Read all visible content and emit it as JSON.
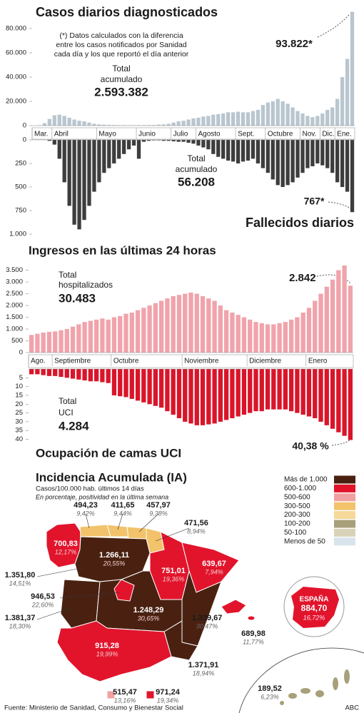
{
  "chart_data": [
    {
      "type": "bar",
      "title": "Casos diarios diagnosticados",
      "color": "#b9c6cf",
      "categories": [
        "Mar.",
        null,
        null,
        null,
        "Abril",
        null,
        null,
        null,
        null,
        null,
        null,
        null,
        null,
        "Mayo",
        null,
        null,
        null,
        null,
        null,
        null,
        null,
        "Junio",
        null,
        null,
        null,
        null,
        null,
        null,
        "Julio",
        null,
        null,
        null,
        null,
        "Agosto",
        null,
        null,
        null,
        null,
        null,
        null,
        null,
        "Sept.",
        null,
        null,
        null,
        null,
        null,
        "Octubre",
        null,
        null,
        null,
        null,
        null,
        null,
        "Nov.",
        null,
        null,
        null,
        "Dic.",
        null,
        null,
        "Ene.",
        null,
        null,
        null
      ],
      "values": [
        0,
        300,
        2000,
        5500,
        8500,
        9000,
        8000,
        6500,
        5000,
        4000,
        3500,
        2500,
        1500,
        1000,
        800,
        600,
        500,
        400,
        400,
        350,
        350,
        400,
        400,
        450,
        500,
        800,
        1000,
        1500,
        2500,
        3500,
        4000,
        5000,
        6000,
        6500,
        7500,
        8000,
        9000,
        9500,
        10000,
        11000,
        11000,
        11500,
        11000,
        11000,
        12000,
        13000,
        17000,
        19000,
        20000,
        22000,
        20000,
        18000,
        15000,
        12000,
        10000,
        8000,
        7000,
        8000,
        10000,
        13000,
        15000,
        22000,
        40000,
        55000,
        93822
      ],
      "ylim": [
        0,
        95000
      ],
      "yticks": [
        0,
        {
          "value": 20000,
          "label": "20.000"
        },
        {
          "value": 40000,
          "label": "40.000"
        },
        {
          "value": 60000,
          "label": "60.000"
        },
        {
          "value": 80000,
          "label": "80.000"
        }
      ],
      "annotations": [
        "(*) Datos calculados con la diferencia",
        "entre los casos notificados por Sanidad",
        "cada día y los que reportó el día anterior",
        "Total",
        "acumulado",
        "2.593.382",
        "93.822*"
      ]
    },
    {
      "type": "bar",
      "title": "Fallecidos diarios",
      "color": "#3d3d3d",
      "y_inverted": true,
      "values": [
        0,
        0,
        0,
        10,
        50,
        200,
        450,
        700,
        900,
        950,
        850,
        700,
        550,
        450,
        350,
        300,
        250,
        200,
        150,
        100,
        60,
        200,
        20,
        10,
        5,
        5,
        10,
        10,
        15,
        20,
        20,
        30,
        40,
        60,
        80,
        100,
        150,
        180,
        200,
        220,
        230,
        250,
        230,
        220,
        200,
        250,
        300,
        350,
        420,
        480,
        500,
        480,
        450,
        400,
        350,
        300,
        280,
        250,
        270,
        300,
        350,
        450,
        500,
        550,
        767
      ],
      "ylim": [
        0,
        1000
      ],
      "yticks": [
        0,
        250,
        500,
        750,
        {
          "value": 1000,
          "label": "1.000"
        }
      ],
      "annotations": [
        "Total",
        "acumulado",
        "56.208",
        "767*"
      ]
    },
    {
      "type": "bar",
      "title": "Ingresos en las últimas 24 horas",
      "color": "#f0a3ab",
      "categories": [
        "Ago.",
        null,
        null,
        null,
        "Septiembre",
        null,
        null,
        null,
        null,
        null,
        null,
        null,
        null,
        null,
        "Octubre",
        null,
        null,
        null,
        null,
        null,
        null,
        null,
        null,
        null,
        null,
        null,
        "Noviembre",
        null,
        null,
        null,
        null,
        null,
        null,
        null,
        null,
        null,
        null,
        "Diciembre",
        null,
        null,
        null,
        null,
        null,
        null,
        null,
        null,
        null,
        "Enero",
        null,
        null,
        null,
        null,
        null,
        null,
        null
      ],
      "values": [
        750,
        800,
        850,
        880,
        900,
        950,
        1000,
        1100,
        1200,
        1300,
        1350,
        1400,
        1450,
        1400,
        1500,
        1550,
        1650,
        1700,
        1800,
        1900,
        2000,
        2100,
        2200,
        2300,
        2400,
        2450,
        2500,
        2550,
        2500,
        2400,
        2300,
        2200,
        2000,
        1800,
        1700,
        1600,
        1500,
        1400,
        1300,
        1250,
        1200,
        1200,
        1250,
        1300,
        1400,
        1500,
        1700,
        1900,
        2200,
        2500,
        2800,
        3100,
        3500,
        3700,
        2842
      ],
      "ylim": [
        0,
        3700
      ],
      "yticks": [
        0,
        500,
        {
          "value": 1000,
          "label": "1.000"
        },
        {
          "value": 1500,
          "label": "1.500"
        },
        {
          "value": 2000,
          "label": "2.000"
        },
        {
          "value": 2500,
          "label": "2.500"
        },
        {
          "value": 3000,
          "label": "3.000"
        },
        {
          "value": 3500,
          "label": "3.500"
        }
      ],
      "annotations": [
        "Total",
        "hospitalizados",
        "30.483",
        "2.842"
      ]
    },
    {
      "type": "bar",
      "title": "Ocupación de camas UCI",
      "color": "#d9152a",
      "y_inverted": true,
      "values": [
        3,
        3,
        3.5,
        4,
        4,
        4.5,
        5,
        5.5,
        6,
        6.5,
        7,
        7,
        7.5,
        8,
        15,
        15.5,
        16,
        17,
        18,
        19,
        20,
        21,
        22,
        24,
        26,
        28,
        30,
        31,
        32,
        32,
        31.5,
        31,
        30,
        29,
        28,
        27,
        26,
        25,
        24,
        24,
        23,
        23,
        23,
        23,
        24,
        25,
        26,
        27,
        28,
        30,
        32,
        34,
        36,
        38,
        40.38
      ],
      "ylim": [
        0,
        41
      ],
      "yticks": [
        5,
        10,
        15,
        20,
        25,
        30,
        35,
        40
      ],
      "annotations": [
        "Total",
        "UCI",
        "4.284",
        "40,38 %"
      ]
    }
  ],
  "map": {
    "title": "Incidencia Acumulada (IA)",
    "subtitle": "Casos/100.000 hab. últimos 14 días",
    "note": "En porcentaje, positividad en la última semana",
    "legend": [
      {
        "label": "Más de 1.000",
        "color": "#4a2111"
      },
      {
        "label": "600-1.000",
        "color": "#e2142c"
      },
      {
        "label": "500-600",
        "color": "#f0a0a0"
      },
      {
        "label": "300-500",
        "color": "#f2c36b"
      },
      {
        "label": "200-300",
        "color": "#f5d89a"
      },
      {
        "label": "100-200",
        "color": "#a8a07a"
      },
      {
        "label": "50-100",
        "color": "#d8d3b8"
      },
      {
        "label": "Menos de 50",
        "color": "#d8e4ec"
      }
    ],
    "regions": [
      {
        "value": "700,83",
        "positivity": "12,17%"
      },
      {
        "value": "494,23",
        "positivity": "9,42%"
      },
      {
        "value": "411,65",
        "positivity": "9,44%"
      },
      {
        "value": "457,97",
        "positivity": "9,38%"
      },
      {
        "value": "471,56",
        "positivity": "8,94%"
      },
      {
        "value": "1.266,11",
        "positivity": "20,55%"
      },
      {
        "value": "751,01",
        "positivity": "19,36%"
      },
      {
        "value": "639,67",
        "positivity": "7,94%"
      },
      {
        "value": "1.351,80",
        "positivity": "14,51%"
      },
      {
        "value": "946,53",
        "positivity": "22,60%"
      },
      {
        "value": "1.248,29",
        "positivity": "30,65%"
      },
      {
        "value": "1.339,67",
        "positivity": "30,47%"
      },
      {
        "value": "689,98",
        "positivity": "11,77%"
      },
      {
        "value": "915,28",
        "positivity": "19,99%"
      },
      {
        "value": "1.371,91",
        "positivity": "18,94%"
      },
      {
        "value": "1.381,37",
        "positivity": "18,30%"
      },
      {
        "value": "515,47",
        "positivity": "13,16%"
      },
      {
        "value": "971,24",
        "positivity": "19,34%"
      },
      {
        "value": "189,52",
        "positivity": "6,23%"
      }
    ],
    "spain": {
      "label": "ESPAÑA",
      "value": "884,70",
      "positivity": "16,72%"
    }
  },
  "source": "Fuente: Ministerio de Sanidad, Consumo y Bienestar Social",
  "brand": "ABC"
}
